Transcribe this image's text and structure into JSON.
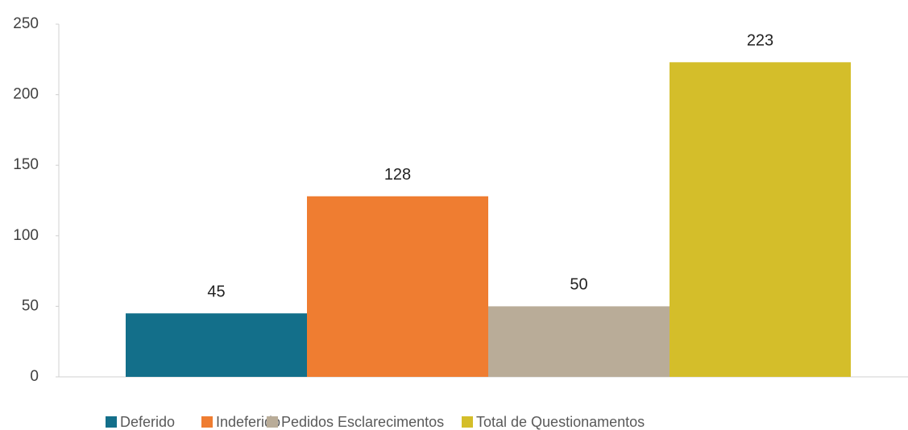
{
  "chart_data": {
    "type": "bar",
    "categories": [
      null
    ],
    "series": [
      {
        "name": "Deferido",
        "color": "#136f8a",
        "values": [
          45
        ]
      },
      {
        "name": "Indeferido",
        "color": "#ef7d31",
        "values": [
          128
        ]
      },
      {
        "name": "Pedidos Esclarecimentos",
        "color": "#b9ac98",
        "values": [
          50
        ]
      },
      {
        "name": "Total de Questionamentos",
        "color": "#d4be2a",
        "values": [
          223
        ]
      }
    ],
    "ylim": [
      0,
      250
    ],
    "yticks": [
      0,
      50,
      100,
      150,
      200,
      250
    ],
    "grid": false,
    "legend": "bottom"
  }
}
